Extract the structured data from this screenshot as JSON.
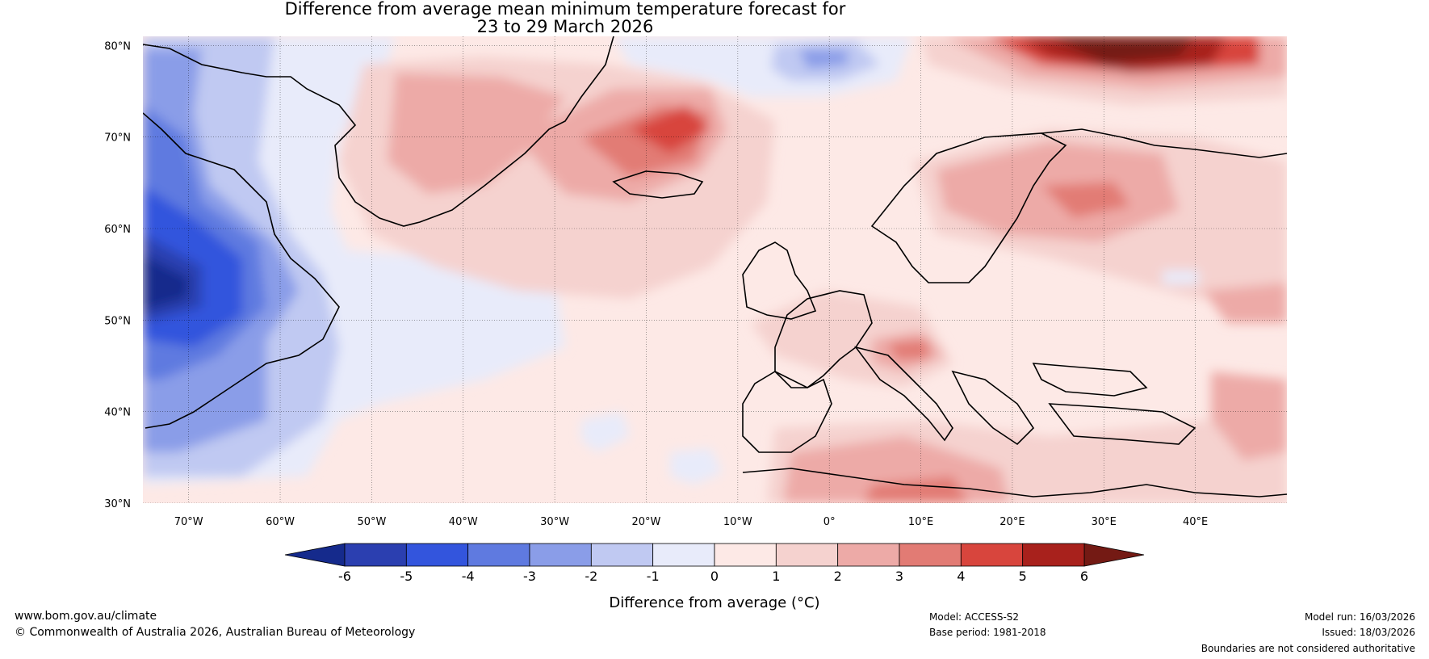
{
  "title": {
    "line1": "Difference from average mean minimum temperature forecast for",
    "line2": "23 to 29 March 2026"
  },
  "map": {
    "lat_labels": [
      "80°N",
      "70°N",
      "60°N",
      "50°N",
      "40°N",
      "30°N"
    ],
    "lon_labels": [
      "70°W",
      "60°W",
      "50°W",
      "40°W",
      "30°W",
      "20°W",
      "10°W",
      "0°",
      "10°E",
      "20°E",
      "30°E",
      "40°E"
    ],
    "lat_values": [
      80,
      70,
      60,
      50,
      40,
      30
    ],
    "lon_values": [
      -70,
      -60,
      -50,
      -40,
      -30,
      -20,
      -10,
      0,
      10,
      20,
      30,
      40
    ],
    "lon_range": [
      -75,
      50
    ],
    "lat_range": [
      30,
      81
    ]
  },
  "colorbar": {
    "ticks": [
      "-6",
      "-5",
      "-4",
      "-3",
      "-2",
      "-1",
      "0",
      "1",
      "2",
      "3",
      "4",
      "5",
      "6"
    ],
    "colors": [
      "#2b3fb0",
      "#3355dd",
      "#5f7ae0",
      "#8a9de8",
      "#c0c9f2",
      "#e8ebfa",
      "#fde9e6",
      "#f5d2cf",
      "#edaaa7",
      "#e27b74",
      "#d8453d",
      "#a8211c"
    ],
    "under_color": "#152a8c",
    "over_color": "#741a14",
    "label": "Difference from average (°C)"
  },
  "footer": {
    "website": "www.bom.gov.au/climate",
    "copyright": "© Commonwealth of Australia 2026, Australian Bureau of Meteorology",
    "model": "Model: ACCESS-S2",
    "base_period": "Base period: 1981-2018",
    "model_run": "Model run: 16/03/2026",
    "issued": "Issued: 18/03/2026",
    "disclaimer": "Boundaries are not considered authoritative"
  }
}
